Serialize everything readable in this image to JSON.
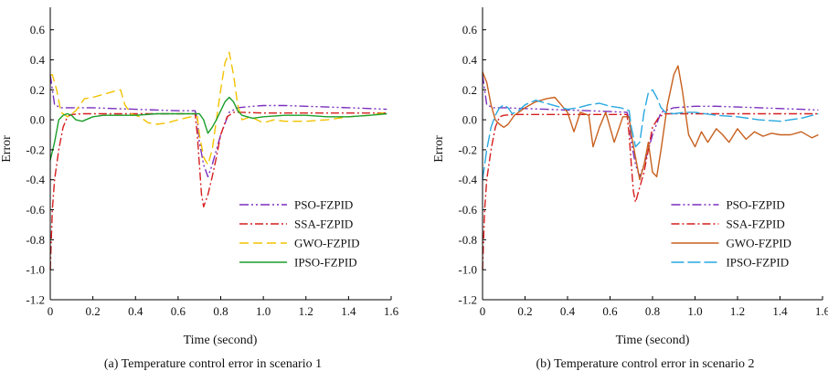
{
  "chart_data": [
    {
      "type": "line",
      "title": "(a) Temperature control error in scenario 1",
      "xlabel": "Time (second)",
      "ylabel": "Error",
      "xlim": [
        0,
        1.6
      ],
      "ylim": [
        -1.2,
        0.75
      ],
      "xticks": [
        0,
        0.2,
        0.4,
        0.6,
        0.8,
        1.0,
        1.2,
        1.4,
        1.6
      ],
      "xtick_labels": [
        "0",
        "0.2",
        "0.4",
        "0.6",
        "0.8",
        "1.0",
        "1.2",
        "1.4",
        "1.6"
      ],
      "yticks": [
        -1.2,
        -1.0,
        -0.8,
        -0.6,
        -0.4,
        -0.2,
        0.0,
        0.2,
        0.4,
        0.6
      ],
      "ytick_labels": [
        "-1.2",
        "-1.0",
        "-0.8",
        "-0.6",
        "-0.4",
        "-0.2",
        "0.0",
        "0.2",
        "0.4",
        "0.6"
      ],
      "legend_position": "lower-right",
      "series": [
        {
          "name": "PSO-FZPID",
          "color": "#7b2fbe",
          "dash": "10,3,2,3,2,3",
          "x": [
            0,
            0.02,
            0.05,
            0.1,
            0.2,
            0.3,
            0.4,
            0.5,
            0.6,
            0.68,
            0.69,
            0.7,
            0.72,
            0.74,
            0.76,
            0.8,
            0.84,
            0.88,
            0.95,
            1.0,
            1.1,
            1.2,
            1.3,
            1.4,
            1.5,
            1.58
          ],
          "y": [
            0.3,
            0.1,
            0.08,
            0.08,
            0.08,
            0.075,
            0.07,
            0.065,
            0.06,
            0.06,
            0.0,
            -0.15,
            -0.3,
            -0.38,
            -0.3,
            -0.1,
            0.05,
            0.08,
            0.09,
            0.095,
            0.095,
            0.09,
            0.085,
            0.08,
            0.075,
            0.07
          ]
        },
        {
          "name": "SSA-FZPID",
          "color": "#d61f1f",
          "dash": "9,3,2,3",
          "x": [
            0,
            0.01,
            0.02,
            0.04,
            0.06,
            0.08,
            0.1,
            0.15,
            0.2,
            0.3,
            0.4,
            0.5,
            0.6,
            0.68,
            0.69,
            0.7,
            0.71,
            0.72,
            0.74,
            0.76,
            0.78,
            0.8,
            0.83,
            0.86,
            0.9,
            1.0,
            1.2,
            1.4,
            1.58
          ],
          "y": [
            -1.0,
            -0.6,
            -0.4,
            -0.2,
            -0.05,
            0.02,
            0.035,
            0.04,
            0.04,
            0.04,
            0.04,
            0.04,
            0.04,
            0.04,
            -0.1,
            -0.3,
            -0.5,
            -0.58,
            -0.5,
            -0.38,
            -0.25,
            -0.1,
            0.02,
            0.05,
            0.05,
            0.045,
            0.045,
            0.045,
            0.045
          ]
        },
        {
          "name": "GWO-FZPID",
          "color": "#f2c200",
          "dash": "10,5",
          "x": [
            0,
            0.01,
            0.03,
            0.05,
            0.08,
            0.12,
            0.16,
            0.2,
            0.25,
            0.3,
            0.33,
            0.35,
            0.38,
            0.42,
            0.46,
            0.5,
            0.55,
            0.6,
            0.66,
            0.69,
            0.7,
            0.72,
            0.74,
            0.76,
            0.78,
            0.8,
            0.82,
            0.84,
            0.86,
            0.88,
            0.9,
            0.94,
            1.0,
            1.05,
            1.1,
            1.2,
            1.3,
            1.4,
            1.5,
            1.58
          ],
          "y": [
            0.3,
            0.3,
            0.2,
            0.05,
            0.02,
            0.06,
            0.14,
            0.15,
            0.17,
            0.19,
            0.2,
            0.1,
            0.04,
            0.02,
            -0.02,
            -0.03,
            -0.02,
            0.0,
            0.02,
            0.02,
            -0.1,
            -0.25,
            -0.3,
            -0.2,
            0.0,
            0.2,
            0.38,
            0.45,
            0.3,
            0.1,
            0.0,
            0.02,
            -0.02,
            0.0,
            -0.01,
            -0.01,
            0.0,
            0.02,
            0.03,
            0.05
          ]
        },
        {
          "name": "IPSO-FZPID",
          "color": "#1b9e2a",
          "dash": "",
          "x": [
            0,
            0.02,
            0.04,
            0.06,
            0.08,
            0.1,
            0.12,
            0.15,
            0.2,
            0.25,
            0.3,
            0.4,
            0.5,
            0.6,
            0.7,
            0.72,
            0.74,
            0.76,
            0.78,
            0.8,
            0.82,
            0.84,
            0.86,
            0.88,
            0.9,
            0.95,
            1.0,
            1.1,
            1.2,
            1.3,
            1.4,
            1.5,
            1.58
          ],
          "y": [
            -0.27,
            -0.15,
            0.0,
            0.03,
            0.04,
            0.03,
            0.0,
            -0.01,
            0.02,
            0.03,
            0.03,
            0.03,
            0.04,
            0.04,
            0.04,
            0.0,
            -0.09,
            -0.05,
            0.0,
            0.06,
            0.12,
            0.15,
            0.12,
            0.06,
            0.03,
            0.01,
            0.02,
            0.03,
            0.03,
            0.02,
            0.02,
            0.03,
            0.04
          ]
        }
      ]
    },
    {
      "type": "line",
      "title": "(b) Temperature control error in scenario 2",
      "xlabel": "Time (second)",
      "ylabel": "Error",
      "xlim": [
        0,
        1.6
      ],
      "ylim": [
        -1.2,
        0.75
      ],
      "xticks": [
        0,
        0.2,
        0.4,
        0.6,
        0.8,
        1.0,
        1.2,
        1.4,
        1.6
      ],
      "xtick_labels": [
        "0",
        "0.2",
        "0.4",
        "0.6",
        "0.8",
        "1.0",
        "1.2",
        "1.4",
        "1.6"
      ],
      "yticks": [
        -1.2,
        -1.0,
        -0.8,
        -0.6,
        -0.4,
        -0.2,
        0.0,
        0.2,
        0.4,
        0.6
      ],
      "ytick_labels": [
        "-1.2",
        "-1.0",
        "-0.8",
        "-0.6",
        "-0.4",
        "-0.2",
        "0.0",
        "0.2",
        "0.4",
        "0.6"
      ],
      "legend_position": "lower-right",
      "series": [
        {
          "name": "PSO-FZPID",
          "color": "#7b2fbe",
          "dash": "10,3,2,3,2,3",
          "x": [
            0,
            0.02,
            0.05,
            0.1,
            0.2,
            0.3,
            0.4,
            0.5,
            0.6,
            0.68,
            0.69,
            0.7,
            0.72,
            0.74,
            0.76,
            0.8,
            0.84,
            0.9,
            1.0,
            1.1,
            1.2,
            1.3,
            1.4,
            1.5,
            1.58
          ],
          "y": [
            0.3,
            0.1,
            0.08,
            0.08,
            0.075,
            0.07,
            0.065,
            0.06,
            0.055,
            0.05,
            0.0,
            -0.15,
            -0.3,
            -0.38,
            -0.3,
            -0.1,
            0.05,
            0.08,
            0.09,
            0.09,
            0.085,
            0.08,
            0.075,
            0.07,
            0.065
          ]
        },
        {
          "name": "SSA-FZPID",
          "color": "#d61f1f",
          "dash": "9,3,2,3",
          "x": [
            0,
            0.01,
            0.02,
            0.04,
            0.06,
            0.08,
            0.1,
            0.15,
            0.2,
            0.3,
            0.4,
            0.5,
            0.6,
            0.68,
            0.69,
            0.7,
            0.71,
            0.72,
            0.74,
            0.76,
            0.78,
            0.8,
            0.83,
            0.86,
            0.9,
            1.0,
            1.2,
            1.4,
            1.58
          ],
          "y": [
            -1.0,
            -0.6,
            -0.4,
            -0.2,
            -0.05,
            0.02,
            0.03,
            0.035,
            0.035,
            0.035,
            0.035,
            0.035,
            0.035,
            0.035,
            -0.1,
            -0.3,
            -0.48,
            -0.55,
            -0.45,
            -0.35,
            -0.2,
            -0.05,
            0.02,
            0.04,
            0.04,
            0.04,
            0.04,
            0.04,
            0.04
          ]
        },
        {
          "name": "GWO-FZPID",
          "color": "#c8601e",
          "dash": "",
          "x": [
            0,
            0.02,
            0.04,
            0.06,
            0.08,
            0.1,
            0.12,
            0.15,
            0.2,
            0.25,
            0.3,
            0.34,
            0.37,
            0.4,
            0.43,
            0.46,
            0.5,
            0.52,
            0.55,
            0.58,
            0.62,
            0.66,
            0.69,
            0.7,
            0.72,
            0.74,
            0.76,
            0.78,
            0.8,
            0.82,
            0.84,
            0.87,
            0.9,
            0.92,
            0.94,
            0.97,
            1.0,
            1.03,
            1.06,
            1.1,
            1.13,
            1.16,
            1.2,
            1.24,
            1.28,
            1.32,
            1.36,
            1.4,
            1.45,
            1.5,
            1.55,
            1.58
          ],
          "y": [
            0.32,
            0.25,
            0.1,
            0.0,
            -0.03,
            -0.05,
            -0.03,
            0.03,
            0.08,
            0.12,
            0.14,
            0.15,
            0.1,
            0.05,
            -0.08,
            0.05,
            0.03,
            -0.18,
            -0.05,
            0.05,
            -0.15,
            0.02,
            0.02,
            -0.1,
            -0.25,
            -0.4,
            -0.3,
            -0.15,
            -0.35,
            -0.38,
            -0.2,
            0.1,
            0.3,
            0.36,
            0.2,
            -0.1,
            -0.18,
            -0.08,
            -0.15,
            -0.06,
            -0.1,
            -0.15,
            -0.06,
            -0.13,
            -0.08,
            -0.11,
            -0.09,
            -0.1,
            -0.1,
            -0.08,
            -0.12,
            -0.1
          ]
        },
        {
          "name": "IPSO-FZPID",
          "color": "#29a8e0",
          "dash": "14,4",
          "x": [
            0,
            0.02,
            0.04,
            0.06,
            0.08,
            0.1,
            0.12,
            0.14,
            0.17,
            0.2,
            0.25,
            0.3,
            0.35,
            0.4,
            0.45,
            0.5,
            0.55,
            0.6,
            0.65,
            0.69,
            0.7,
            0.72,
            0.74,
            0.76,
            0.78,
            0.8,
            0.82,
            0.84,
            0.86,
            0.9,
            0.95,
            1.0,
            1.1,
            1.2,
            1.3,
            1.4,
            1.5,
            1.58
          ],
          "y": [
            -0.4,
            -0.2,
            -0.05,
            0.03,
            0.08,
            0.1,
            0.08,
            0.04,
            0.06,
            0.1,
            0.13,
            0.11,
            0.09,
            0.07,
            0.08,
            0.1,
            0.11,
            0.09,
            0.08,
            0.06,
            -0.05,
            -0.18,
            -0.15,
            0.05,
            0.18,
            0.2,
            0.15,
            0.08,
            0.05,
            0.04,
            0.05,
            0.05,
            0.03,
            0.02,
            0.0,
            -0.01,
            0.01,
            0.04
          ]
        }
      ]
    }
  ]
}
